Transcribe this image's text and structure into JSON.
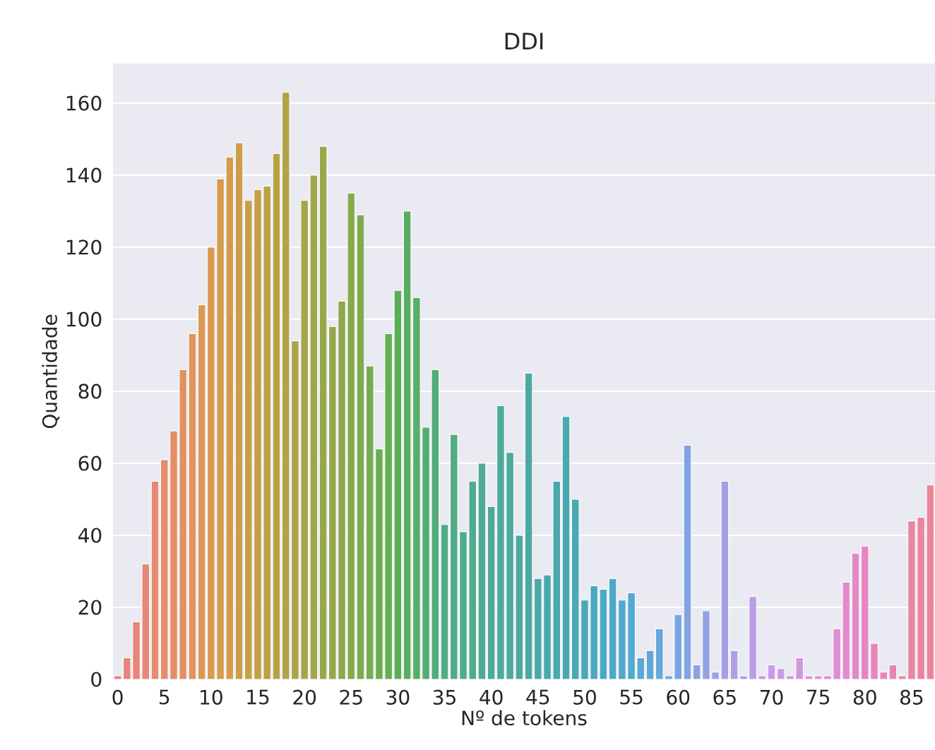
{
  "chart_data": {
    "type": "bar",
    "title": "DDI",
    "xlabel": "Nº de tokens",
    "ylabel": "Quantidade",
    "categories": [
      "0",
      null,
      null,
      null,
      null,
      "5",
      null,
      null,
      null,
      null,
      "10",
      null,
      null,
      null,
      null,
      "15",
      null,
      null,
      null,
      null,
      "20",
      null,
      null,
      null,
      null,
      "25",
      null,
      null,
      null,
      null,
      "30",
      null,
      null,
      null,
      null,
      "35",
      null,
      null,
      null,
      null,
      "40",
      null,
      null,
      null,
      null,
      "45",
      null,
      null,
      null,
      null,
      "50",
      null,
      null,
      null,
      null,
      "55",
      null,
      null,
      null,
      null,
      "60",
      null,
      null,
      null,
      null,
      "65",
      null,
      null,
      null,
      null,
      "70",
      null,
      null,
      null,
      null,
      "75",
      null,
      null,
      null,
      null,
      "80",
      null,
      null,
      null,
      null,
      "85",
      null,
      null
    ],
    "values": [
      1,
      6,
      16,
      32,
      55,
      61,
      69,
      86,
      96,
      104,
      120,
      139,
      145,
      149,
      133,
      136,
      137,
      146,
      163,
      94,
      133,
      140,
      148,
      98,
      105,
      135,
      129,
      87,
      64,
      96,
      108,
      130,
      106,
      70,
      86,
      43,
      68,
      41,
      55,
      60,
      48,
      76,
      63,
      40,
      85,
      28,
      29,
      55,
      73,
      50,
      22,
      26,
      25,
      28,
      22,
      24,
      6,
      8,
      14,
      1,
      18,
      65,
      4,
      19,
      2,
      55,
      8,
      1,
      23,
      1,
      4,
      3,
      1,
      6,
      1,
      1,
      1,
      14,
      27,
      35,
      37,
      10,
      2,
      4,
      1,
      44,
      45,
      54
    ],
    "colors": [
      "#e88282",
      "#e8847e",
      "#e7867a",
      "#e78876",
      "#e68a72",
      "#e68c6e",
      "#e48f68",
      "#e19262",
      "#df955c",
      "#dc9856",
      "#da9b50",
      "#d59c4e",
      "#d19d4c",
      "#cc9e4a",
      "#c89f48",
      "#c3a046",
      "#bda147",
      "#b7a248",
      "#b1a349",
      "#aba44a",
      "#a5a54b",
      "#9fa64b",
      "#99a74b",
      "#93a84b",
      "#8da94b",
      "#87aa4b",
      "#7eab4d",
      "#75ac4f",
      "#6cad51",
      "#63ae53",
      "#5aaf55",
      "#58ae5e",
      "#56ae67",
      "#54ad70",
      "#52ad79",
      "#50ac82",
      "#50ac86",
      "#4fab8a",
      "#4fab8e",
      "#4eaa92",
      "#4eaa96",
      "#4daa99",
      "#4da99c",
      "#4ca99f",
      "#4ca8a2",
      "#4ba8a5",
      "#4ba8a9",
      "#4ba8ad",
      "#4ba8b1",
      "#4ba8b5",
      "#4ba8b9",
      "#4ca8be",
      "#4da9c3",
      "#4ea9c8",
      "#4faacd",
      "#50aad2",
      "#58a9d5",
      "#60a8d8",
      "#68a7db",
      "#70a6de",
      "#78a5e1",
      "#81a4e2",
      "#8aa3e3",
      "#93a2e4",
      "#9ca1e5",
      "#a5a0e6",
      "#ac9fe6",
      "#b39ee6",
      "#ba9de6",
      "#c19ce6",
      "#c89be6",
      "#cc99e4",
      "#d097e2",
      "#d495e0",
      "#d893de",
      "#dc91dc",
      "#de8fd7",
      "#df8dd2",
      "#e18bcd",
      "#e289c8",
      "#e487c3",
      "#e587bd",
      "#e687b7",
      "#e687b1",
      "#e787ab",
      "#e887a5",
      "#e887a0",
      "#e8879b"
    ],
    "ylim": [
      0,
      171
    ],
    "yticks": [
      0,
      20,
      40,
      60,
      80,
      100,
      120,
      140,
      160
    ],
    "grid": "y"
  }
}
